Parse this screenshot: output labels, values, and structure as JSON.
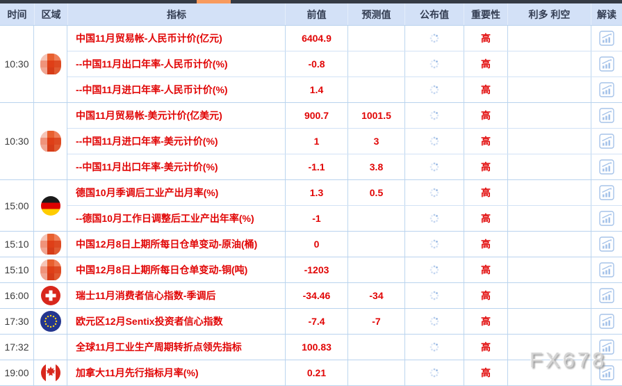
{
  "watermark": "FX678",
  "header": {
    "columns": [
      "时间",
      "区域",
      "指标",
      "前值",
      "预测值",
      "公布值",
      "重要性",
      "利多 利空",
      "解读"
    ]
  },
  "importance_label": "高",
  "colors": {
    "accent_red": "#e10505",
    "topbar": "#353b45",
    "topbar_accent": "#f89a5d",
    "header_bg": "#d3e1f7",
    "grid_border": "#b9d3ee",
    "icon_blue": "#a6c3e9"
  },
  "icons": {
    "published_pending": "loading-spinner-icon",
    "interpret": "bar-chart-arrow-icon"
  },
  "groups": [
    {
      "time": "10:30",
      "flag": "china-pixelated",
      "rows": [
        {
          "indicator": "中国11月贸易帐-人民币计价(亿元)",
          "previous": "6404.9",
          "forecast": "",
          "published": "",
          "importance": "高",
          "bias": ""
        },
        {
          "indicator": "--中国11月出口年率-人民币计价(%)",
          "previous": "-0.8",
          "forecast": "",
          "published": "",
          "importance": "高",
          "bias": ""
        },
        {
          "indicator": "--中国11月进口年率-人民币计价(%)",
          "previous": "1.4",
          "forecast": "",
          "published": "",
          "importance": "高",
          "bias": ""
        }
      ]
    },
    {
      "time": "10:30",
      "flag": "china-pixelated",
      "rows": [
        {
          "indicator": "中国11月贸易帐-美元计价(亿美元)",
          "previous": "900.7",
          "forecast": "1001.5",
          "published": "",
          "importance": "高",
          "bias": ""
        },
        {
          "indicator": "--中国11月进口年率-美元计价(%)",
          "previous": "1",
          "forecast": "3",
          "published": "",
          "importance": "高",
          "bias": ""
        },
        {
          "indicator": "--中国11月出口年率-美元计价(%)",
          "previous": "-1.1",
          "forecast": "3.8",
          "published": "",
          "importance": "高",
          "bias": ""
        }
      ]
    },
    {
      "time": "15:00",
      "flag": "germany",
      "rows": [
        {
          "indicator": "德国10月季调后工业产出月率(%)",
          "previous": "1.3",
          "forecast": "0.5",
          "published": "",
          "importance": "高",
          "bias": ""
        },
        {
          "indicator": "--德国10月工作日调整后工业产出年率(%)",
          "previous": "-1",
          "forecast": "",
          "published": "",
          "importance": "高",
          "bias": ""
        }
      ]
    },
    {
      "time": "15:10",
      "flag": "china-pixelated",
      "rows": [
        {
          "indicator": "中国12月8日上期所每日仓单变动-原油(桶)",
          "previous": "0",
          "forecast": "",
          "published": "",
          "importance": "高",
          "bias": ""
        }
      ]
    },
    {
      "time": "15:10",
      "flag": "china-pixelated",
      "rows": [
        {
          "indicator": "中国12月8日上期所每日仓单变动-铜(吨)",
          "previous": "-1203",
          "forecast": "",
          "published": "",
          "importance": "高",
          "bias": ""
        }
      ]
    },
    {
      "time": "16:00",
      "flag": "switzerland",
      "rows": [
        {
          "indicator": "瑞士11月消费者信心指数-季调后",
          "previous": "-34.46",
          "forecast": "-34",
          "published": "",
          "importance": "高",
          "bias": ""
        }
      ]
    },
    {
      "time": "17:30",
      "flag": "eu",
      "rows": [
        {
          "indicator": "欧元区12月Sentix投资者信心指数",
          "previous": "-7.4",
          "forecast": "-7",
          "published": "",
          "importance": "高",
          "bias": ""
        }
      ]
    },
    {
      "time": "17:32",
      "flag": "none",
      "rows": [
        {
          "indicator": "全球11月工业生产周期转折点领先指标",
          "previous": "100.83",
          "forecast": "",
          "published": "",
          "importance": "高",
          "bias": ""
        }
      ]
    },
    {
      "time": "19:00",
      "flag": "canada",
      "rows": [
        {
          "indicator": "加拿大11月先行指标月率(%)",
          "previous": "0.21",
          "forecast": "",
          "published": "",
          "importance": "高",
          "bias": ""
        }
      ]
    }
  ]
}
